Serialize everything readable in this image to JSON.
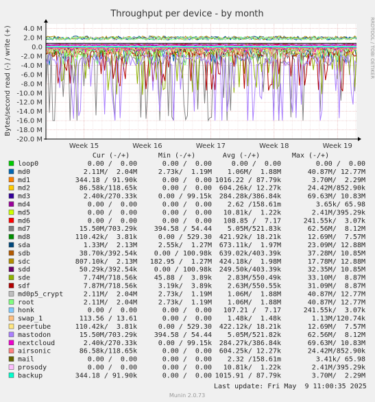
{
  "chart_data": {
    "type": "line",
    "title": "Throughput per device - by month",
    "ylabel": "Bytes/second read (-) / write (+)",
    "ylim": [
      -20000000,
      5000000
    ],
    "yticks": [
      {
        "v": 4000000,
        "label": "4.0 M"
      },
      {
        "v": 2000000,
        "label": "2.0 M"
      },
      {
        "v": 0,
        "label": "0.0"
      },
      {
        "v": -2000000,
        "label": "-2.0 M"
      },
      {
        "v": -4000000,
        "label": "-4.0 M"
      },
      {
        "v": -6000000,
        "label": "-6.0 M"
      },
      {
        "v": -8000000,
        "label": "-8.0 M"
      },
      {
        "v": -10000000,
        "label": "-10.0 M"
      },
      {
        "v": -12000000,
        "label": "-12.0 M"
      },
      {
        "v": -14000000,
        "label": "-14.0 M"
      },
      {
        "v": -16000000,
        "label": "-16.0 M"
      },
      {
        "v": -18000000,
        "label": "-18.0 M"
      },
      {
        "v": -20000000,
        "label": "-20.0 M"
      }
    ],
    "xticks": [
      {
        "week": 15,
        "label": "Week 15"
      },
      {
        "week": 16,
        "label": "Week 16"
      },
      {
        "week": 17,
        "label": "Week 17"
      },
      {
        "week": 18,
        "label": "Week 18"
      },
      {
        "week": 19,
        "label": "Week 19"
      }
    ],
    "xlim_weeks": [
      14.4,
      19.3
    ],
    "grid": true,
    "legend_placement": "bottom",
    "columns": [
      "Cur (-/+)",
      "Min (-/+)",
      "Avg (-/+)",
      "Max (-/+)"
    ],
    "series": [
      {
        "name": "loop0",
        "color": "#00cc00",
        "cur": "0.00 /  0.00",
        "min": "0.00 /  0.00",
        "avg": "0.00 /  0.00",
        "max": "0.00 /  0.00"
      },
      {
        "name": "md0",
        "color": "#0066b3",
        "cur": "2.11M/  2.04M",
        "min": "2.73k/  1.19M",
        "avg": "1.06M/  1.88M",
        "max": "40.87M/ 12.77M"
      },
      {
        "name": "md1",
        "color": "#ff8000",
        "cur": "344.18 / 91.90k",
        "min": "0.00 /  0.00",
        "avg": "1016.22 / 87.79k",
        "max": "3.70M/  2.29M"
      },
      {
        "name": "md2",
        "color": "#ffcc00",
        "cur": "86.58k/118.65k",
        "min": "0.00 /  0.00",
        "avg": "604.26k/ 12.27k",
        "max": "24.42M/852.90k"
      },
      {
        "name": "md3",
        "color": "#330099",
        "cur": "2.40k/270.33k",
        "min": "0.00 / 99.15k",
        "avg": "284.28k/386.84k",
        "max": "69.63M/ 10.83M"
      },
      {
        "name": "md4",
        "color": "#990099",
        "cur": "0.00 /  0.00",
        "min": "0.00 /  0.00",
        "avg": "2.62 /158.61m",
        "max": "3.65k/ 65.98"
      },
      {
        "name": "md5",
        "color": "#ccff00",
        "cur": "0.00 /  0.00",
        "min": "0.00 /  0.00",
        "avg": "10.81k/  1.22k",
        "max": "2.41M/395.29k"
      },
      {
        "name": "md6",
        "color": "#ff0000",
        "cur": "0.00 /  0.00",
        "min": "0.00 /  0.00",
        "avg": "108.85 /  7.17",
        "max": "241.55k/  3.07k"
      },
      {
        "name": "md7",
        "color": "#808080",
        "cur": "15.50M/703.29k",
        "min": "394.58 / 54.44",
        "avg": "5.05M/521.83k",
        "max": "62.56M/  8.12M"
      },
      {
        "name": "md8",
        "color": "#008f00",
        "cur": "110.42k/  3.81k",
        "min": "0.00 / 529.30",
        "avg": "421.92k/ 18.21k",
        "max": "12.69M/  7.57M"
      },
      {
        "name": "sda",
        "color": "#00487d",
        "cur": "1.33M/  2.13M",
        "min": "2.55k/  1.27M",
        "avg": "673.11k/  1.97M",
        "max": "23.09M/ 12.88M"
      },
      {
        "name": "sdb",
        "color": "#b35a00",
        "cur": "38.70k/392.54k",
        "min": "0.00 / 100.98k",
        "avg": "639.02k/403.39k",
        "max": "37.28M/ 10.85M"
      },
      {
        "name": "sdc",
        "color": "#b38f00",
        "cur": "807.10k/  2.13M",
        "min": "182.95 /  1.27M",
        "avg": "424.18k/  1.98M",
        "max": "17.78M/ 12.88M"
      },
      {
        "name": "sdd",
        "color": "#6b006b",
        "cur": "50.29k/392.54k",
        "min": "0.00 / 100.98k",
        "avg": "249.50k/403.39k",
        "max": "32.35M/ 10.85M"
      },
      {
        "name": "sde",
        "color": "#8fb300",
        "cur": "7.74M/718.56k",
        "min": "45.88 /  3.89k",
        "avg": "2.83M/550.49k",
        "max": "33.10M/  8.87M"
      },
      {
        "name": "sdf",
        "color": "#b30000",
        "cur": "7.87M/718.56k",
        "min": "3.19k/  3.89k",
        "avg": "2.63M/550.55k",
        "max": "31.09M/  8.87M"
      },
      {
        "name": "md0p5_crypt",
        "color": "#bebebe",
        "cur": "2.11M/  2.04M",
        "min": "2.73k/  1.19M",
        "avg": "1.06M/  1.88M",
        "max": "40.87M/ 12.77M"
      },
      {
        "name": "root",
        "color": "#80ff80",
        "cur": "2.11M/  2.04M",
        "min": "2.73k/  1.19M",
        "avg": "1.06M/  1.88M",
        "max": "40.87M/ 12.77M"
      },
      {
        "name": "honk",
        "color": "#80c9ff",
        "cur": "0.00 /  0.00",
        "min": "0.00 /  0.00",
        "avg": "107.21 /  7.17",
        "max": "241.55k/  3.07k"
      },
      {
        "name": "swap_1",
        "color": "#ffc080",
        "cur": "113.56 / 13.61",
        "min": "0.00 /  0.00",
        "avg": "1.48k/  1.48k",
        "max": "1.13M/120.74k"
      },
      {
        "name": "peertube",
        "color": "#ffe680",
        "cur": "110.42k/  3.81k",
        "min": "0.00 / 529.30",
        "avg": "422.12k/ 18.21k",
        "max": "12.69M/  7.57M"
      },
      {
        "name": "mastodon",
        "color": "#aa80ff",
        "cur": "15.50M/703.29k",
        "min": "394.58 / 54.44",
        "avg": "5.05M/521.82k",
        "max": "62.56M/  8.12M"
      },
      {
        "name": "nextcloud",
        "color": "#ee00cc",
        "cur": "2.40k/270.33k",
        "min": "0.00 / 99.15k",
        "avg": "284.27k/386.84k",
        "max": "69.63M/ 10.83M"
      },
      {
        "name": "airsonic",
        "color": "#ff8080",
        "cur": "86.58k/118.65k",
        "min": "0.00 /  0.00",
        "avg": "604.25k/ 12.27k",
        "max": "24.42M/852.90k"
      },
      {
        "name": "mail",
        "color": "#666600",
        "cur": "0.00 /  0.00",
        "min": "0.00 /  0.00",
        "avg": "2.32 /158.61m",
        "max": "3.41k/ 65.98"
      },
      {
        "name": "prosody",
        "color": "#ffbfff",
        "cur": "0.00 /  0.00",
        "min": "0.00 /  0.00",
        "avg": "10.81k/  1.22k",
        "max": "2.41M/395.29k"
      },
      {
        "name": "backup",
        "color": "#00ffcc",
        "cur": "344.18 / 91.90k",
        "min": "0.00 /  0.00",
        "avg": "1015.91 / 87.79k",
        "max": "3.70M/  2.29M"
      }
    ]
  },
  "side_label": "RRDTOOL / TOBI OETIKER",
  "last_update": "Last update: Fri May  9 11:00:35 2025",
  "footer": "Munin 2.0.73"
}
